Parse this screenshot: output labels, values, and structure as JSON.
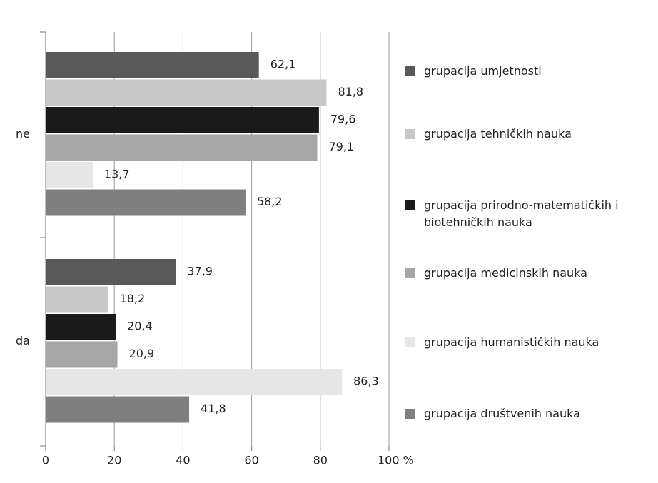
{
  "chart_data": {
    "type": "barh",
    "categories": [
      "ne",
      "da"
    ],
    "series": [
      {
        "name": "grupacija umjetnosti",
        "color": "#595959",
        "values": [
          62.1,
          37.9
        ],
        "value_labels": [
          "62,1",
          "37,9"
        ]
      },
      {
        "name": "grupacija tehničkih nauka",
        "color": "#c8c8c8",
        "values": [
          81.8,
          18.2
        ],
        "value_labels": [
          "81,8",
          "18,2"
        ]
      },
      {
        "name": "grupacija prirodno-matematičkih i biotehničkih nauka",
        "color": "#1a1a1a",
        "values": [
          79.6,
          20.4
        ],
        "value_labels": [
          "79,6",
          "20,4"
        ]
      },
      {
        "name": "grupacija medicinskih nauka",
        "color": "#a6a6a6",
        "values": [
          79.1,
          20.9
        ],
        "value_labels": [
          "79,1",
          "20,9"
        ]
      },
      {
        "name": "grupacija humanističkih nauka",
        "color": "#e6e6e6",
        "values": [
          13.7,
          86.3
        ],
        "value_labels": [
          "13,7",
          "86,3"
        ]
      },
      {
        "name": "grupacija društvenih nauka",
        "color": "#7f7f7f",
        "values": [
          58.2,
          41.8
        ],
        "value_labels": [
          "58,2",
          "41,8"
        ]
      }
    ],
    "xlim": [
      0,
      100
    ],
    "xticks": [
      0,
      20,
      40,
      60,
      80,
      {
        "value": 100,
        "label": "100 %"
      }
    ],
    "grid": true,
    "legend": "right"
  }
}
